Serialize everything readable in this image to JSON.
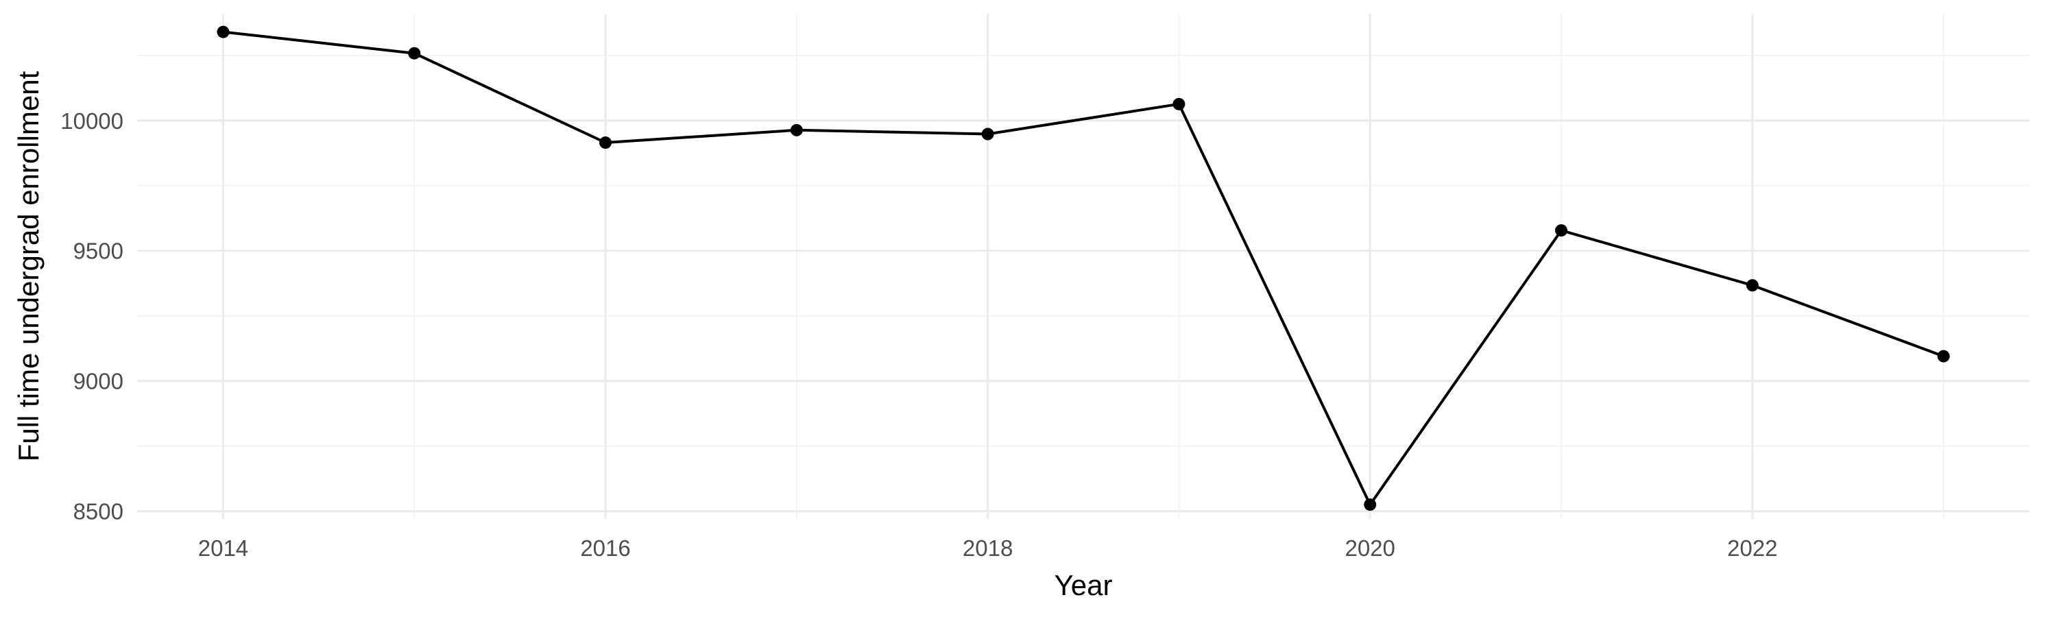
{
  "chart_data": {
    "type": "line",
    "title": "",
    "xlabel": "Year",
    "ylabel": "Full time undergrad enrollment",
    "x": [
      2014,
      2015,
      2016,
      2017,
      2018,
      2019,
      2020,
      2021,
      2022,
      2023
    ],
    "series": [
      {
        "name": "",
        "values": [
          10340,
          10258,
          9915,
          9963,
          9948,
          10063,
          8525,
          9578,
          9367,
          9095
        ]
      }
    ],
    "x_ticks": [
      2014,
      2016,
      2018,
      2020,
      2022
    ],
    "x_tick_labels": [
      "2014",
      "2016",
      "2018",
      "2020",
      "2022"
    ],
    "y_ticks": [
      8500,
      9000,
      9500,
      10000
    ],
    "y_tick_labels": [
      "8500",
      "9000",
      "9500",
      "10000"
    ],
    "xlim": [
      2013.55,
      2023.45
    ],
    "ylim": [
      8470,
      10410
    ],
    "grid": true,
    "line_color": "#000000",
    "grid_color": "#ebebeb"
  }
}
